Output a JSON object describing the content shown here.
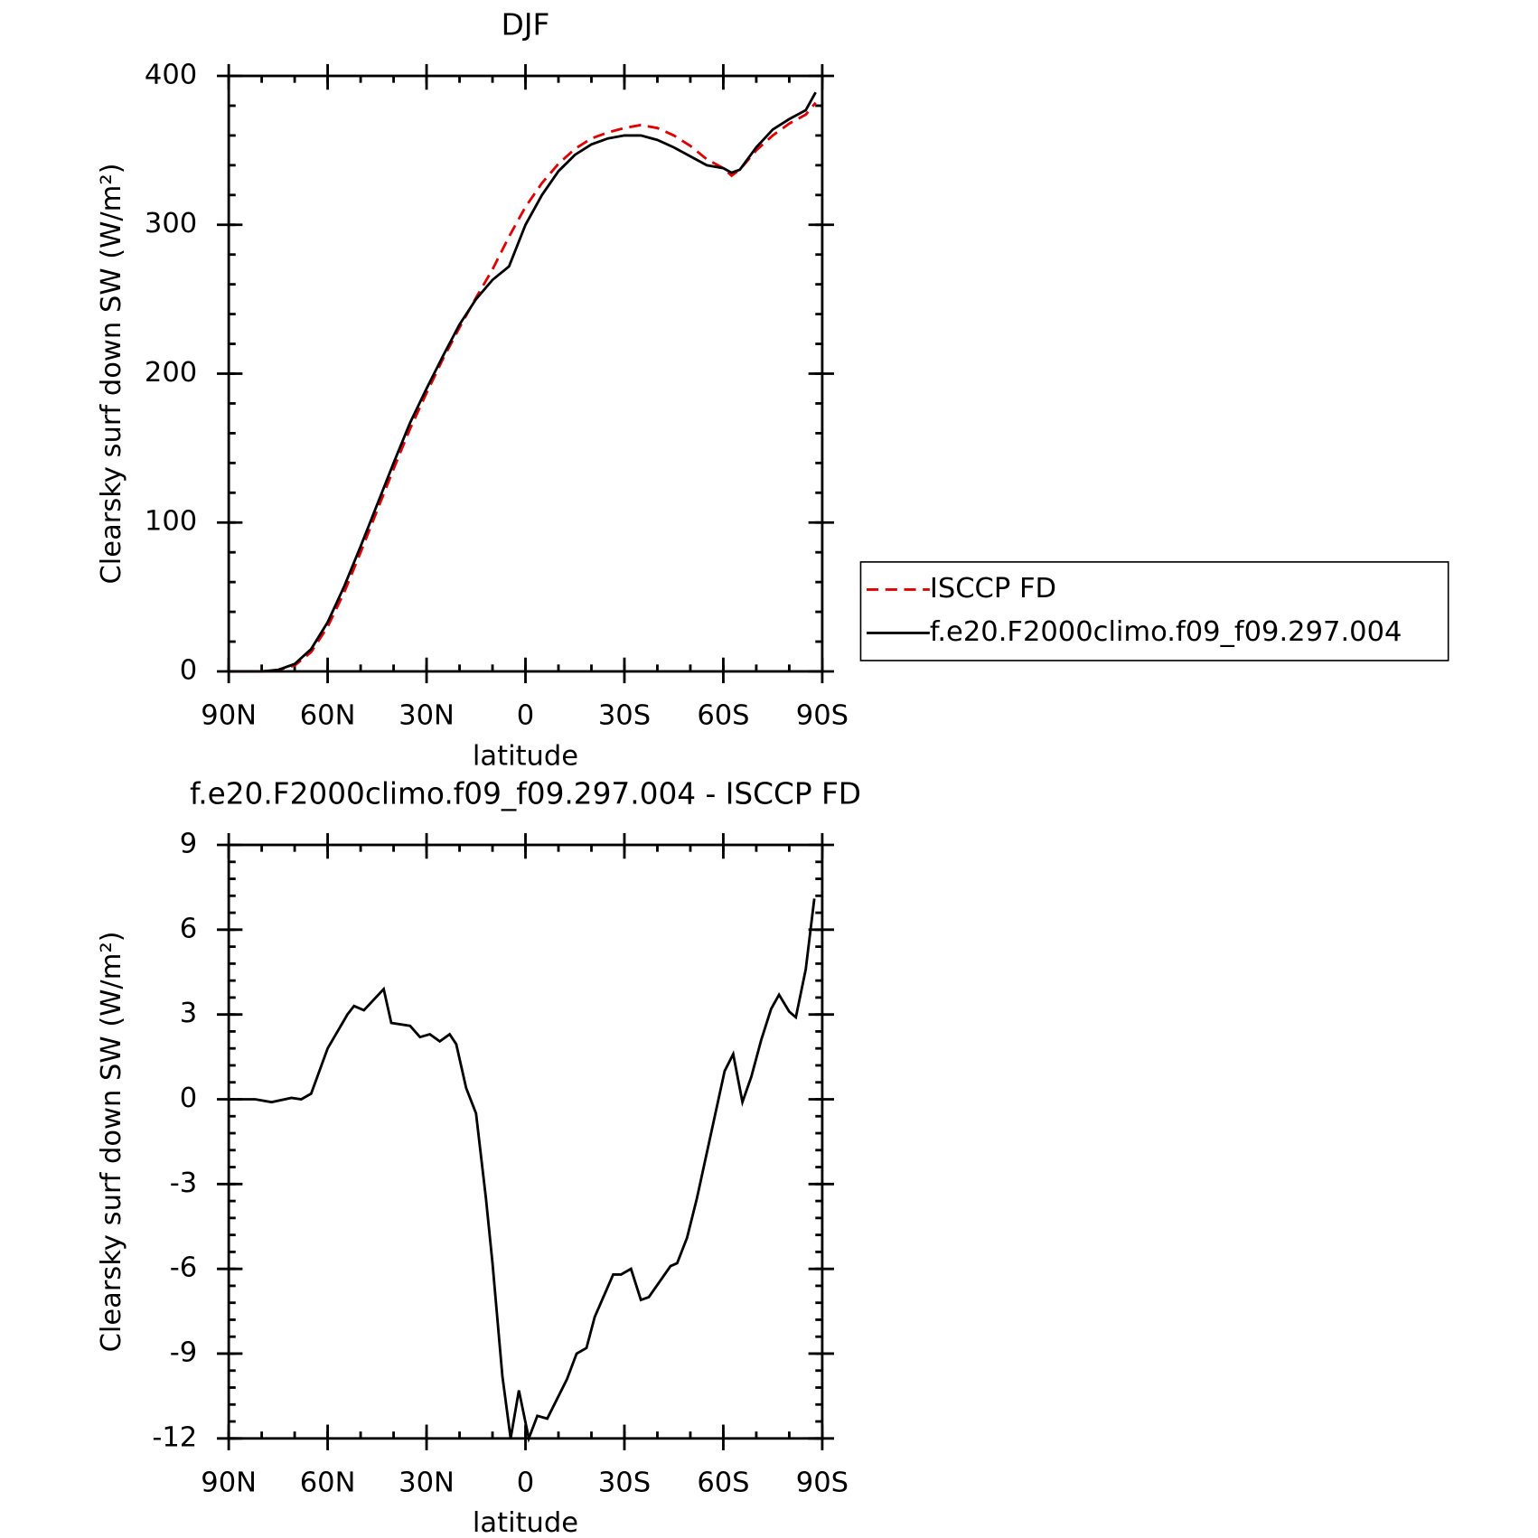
{
  "chart_data": [
    {
      "type": "line",
      "title": "DJF",
      "xlabel": "latitude",
      "ylabel": "Clearsky surf down SW (W/m²)",
      "x": [
        88,
        85,
        80,
        75,
        70,
        65,
        60,
        55,
        50,
        45,
        40,
        35,
        30,
        25,
        20,
        15,
        10,
        5,
        0,
        -5,
        -10,
        -15,
        -20,
        -25,
        -30,
        -35,
        -40,
        -45,
        -50,
        -55,
        -60,
        -62.5,
        -65,
        -70,
        -75,
        -80,
        -85,
        -88
      ],
      "xlim": [
        90,
        -90
      ],
      "xticks": [
        {
          "value": 90,
          "label": "90N"
        },
        {
          "value": 60,
          "label": "60N"
        },
        {
          "value": 30,
          "label": "30N"
        },
        0,
        {
          "value": -30,
          "label": "30S"
        },
        {
          "value": -60,
          "label": "60S"
        },
        {
          "value": -90,
          "label": "90S"
        }
      ],
      "ylim": [
        0,
        400
      ],
      "yticks": [
        0,
        100,
        200,
        300,
        400
      ],
      "legend": "right",
      "series": [
        {
          "name": "ISCCP FD",
          "color": "#e00000",
          "dash": true,
          "values": [
            0,
            0,
            0,
            1,
            4,
            13,
            30,
            53,
            80,
            108,
            136,
            163,
            187,
            210,
            231,
            251,
            270,
            292,
            312,
            328,
            341,
            351,
            358,
            362,
            365,
            367,
            365,
            360,
            353,
            344,
            338,
            333,
            337,
            350,
            360,
            368,
            374,
            382
          ]
        },
        {
          "name": "f.e20.F2000climo.f09_f09.297.004",
          "color": "#000000",
          "dash": false,
          "values": [
            0,
            0,
            0,
            1,
            5,
            15,
            33,
            57,
            84,
            112,
            140,
            167,
            190,
            212,
            233,
            250,
            263,
            272,
            300,
            320,
            336,
            347,
            354,
            358,
            360,
            360,
            357,
            352,
            346,
            340,
            338,
            335,
            337,
            352,
            364,
            371,
            377,
            389
          ]
        }
      ]
    },
    {
      "type": "line",
      "title": "f.e20.F2000climo.f09_f09.297.004 - ISCCP FD",
      "xlabel": "latitude",
      "ylabel": "Clearsky surf down SW (W/m²)",
      "x": [
        87.6,
        82,
        77,
        71,
        68,
        65,
        60,
        54,
        52,
        49,
        43,
        40.7,
        35,
        32,
        29,
        26,
        23,
        21,
        18,
        15,
        12,
        10,
        7,
        4.5,
        2,
        -1,
        -3.6,
        -6.6,
        -12.6,
        -15.5,
        -18.5,
        -21,
        -26.6,
        -29,
        -32,
        -35,
        -37.4,
        -44,
        -46,
        -49,
        -52,
        -60.4,
        -63,
        -65.8,
        -68.5,
        -71.5,
        -74.5,
        -76.9,
        -80,
        -82,
        -85,
        -87.6
      ],
      "xlim": [
        90,
        -90
      ],
      "xticks": [
        {
          "value": 90,
          "label": "90N"
        },
        {
          "value": 60,
          "label": "60N"
        },
        {
          "value": 30,
          "label": "30N"
        },
        0,
        {
          "value": -30,
          "label": "30S"
        },
        {
          "value": -60,
          "label": "60S"
        },
        {
          "value": -90,
          "label": "90S"
        }
      ],
      "ylim": [
        -12,
        9
      ],
      "yticks": [
        -12,
        -9,
        -6,
        -3,
        0,
        3,
        6,
        9
      ],
      "series": [
        {
          "color": "#000000",
          "values": [
            0,
            0,
            -0.1,
            0.05,
            0,
            0.2,
            1.8,
            3,
            3.3,
            3.15,
            3.9,
            2.7,
            2.6,
            2.2,
            2.3,
            2.05,
            2.3,
            1.95,
            0.4,
            -0.5,
            -3.5,
            -5.8,
            -9.8,
            -12,
            -10.3,
            -12,
            -11.2,
            -11.3,
            -9.9,
            -9,
            -8.8,
            -7.7,
            -6.2,
            -6.2,
            -6,
            -7.1,
            -7,
            -5.9,
            -5.8,
            -4.9,
            -3.5,
            1,
            1.6,
            -0.1,
            0.8,
            2.1,
            3.2,
            3.7,
            3.1,
            2.9,
            4.6,
            7.1
          ]
        }
      ]
    }
  ]
}
